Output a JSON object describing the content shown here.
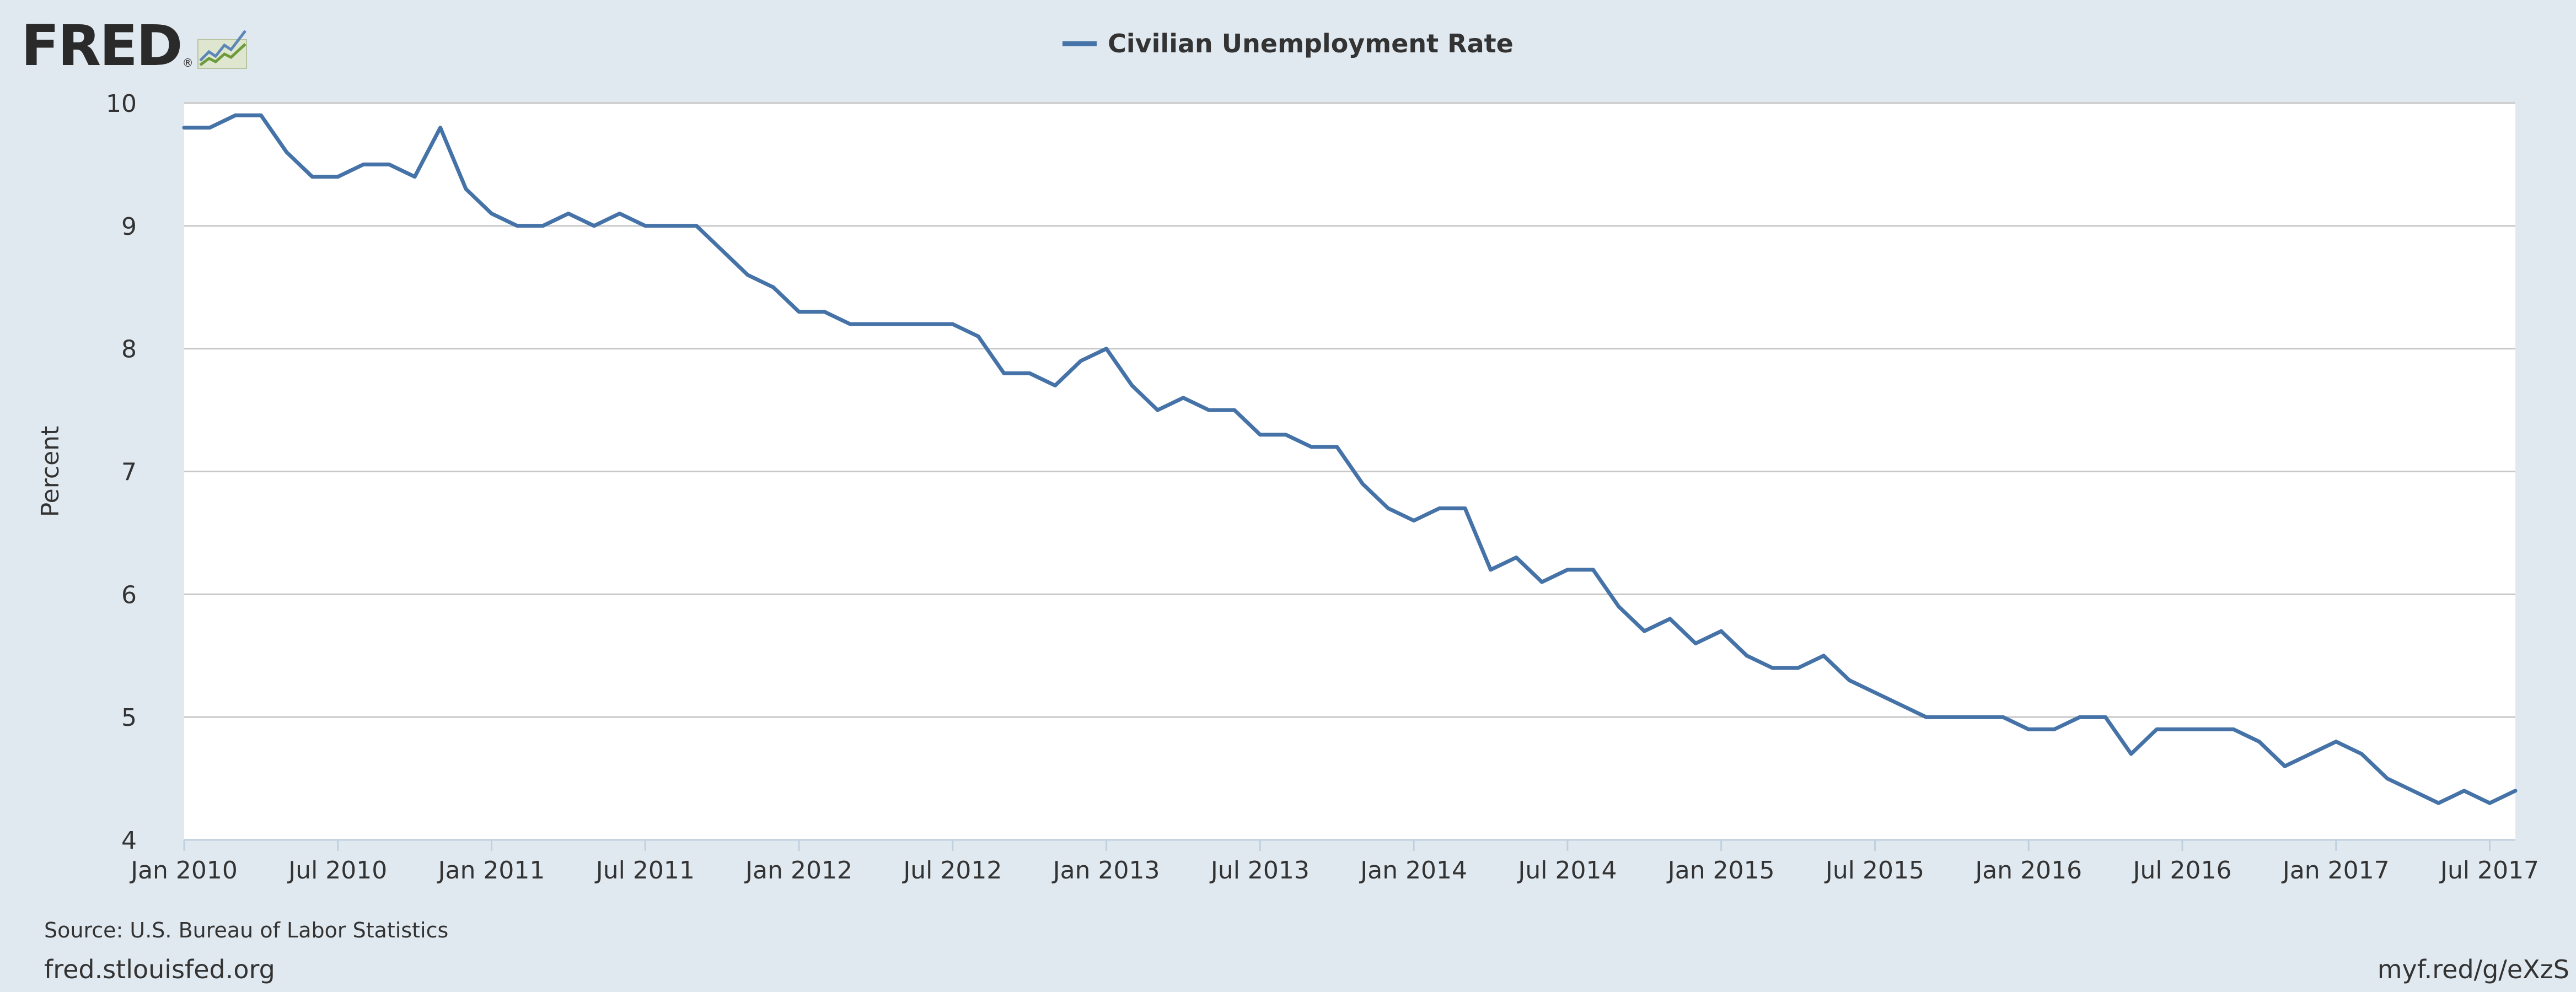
{
  "logo": {
    "text": "FRED",
    "reg": "®"
  },
  "footer": {
    "source": "Source: U.S. Bureau of Labor Statistics",
    "site": "fred.stlouisfed.org",
    "shortlink": "myf.red/g/eXzS"
  },
  "colors": {
    "background": "#e1e9f0",
    "plot": "#ffffff",
    "series": "#4572a7",
    "grid": "#c8c8c8"
  },
  "chart_data": {
    "type": "line",
    "title": "",
    "xlabel": "",
    "ylabel": "Percent",
    "ylim": [
      4,
      10
    ],
    "yticks": [
      4,
      5,
      6,
      7,
      8,
      9,
      10
    ],
    "grid": true,
    "legend_position": "top-center",
    "x_ticks": [
      {
        "date": "2010-01",
        "label": "Jan 2010"
      },
      {
        "date": "2010-07",
        "label": "Jul 2010"
      },
      {
        "date": "2011-01",
        "label": "Jan 2011"
      },
      {
        "date": "2011-07",
        "label": "Jul 2011"
      },
      {
        "date": "2012-01",
        "label": "Jan 2012"
      },
      {
        "date": "2012-07",
        "label": "Jul 2012"
      },
      {
        "date": "2013-01",
        "label": "Jan 2013"
      },
      {
        "date": "2013-07",
        "label": "Jul 2013"
      },
      {
        "date": "2014-01",
        "label": "Jan 2014"
      },
      {
        "date": "2014-07",
        "label": "Jul 2014"
      },
      {
        "date": "2015-01",
        "label": "Jan 2015"
      },
      {
        "date": "2015-07",
        "label": "Jul 2015"
      },
      {
        "date": "2016-01",
        "label": "Jan 2016"
      },
      {
        "date": "2016-07",
        "label": "Jul 2016"
      },
      {
        "date": "2017-01",
        "label": "Jan 2017"
      },
      {
        "date": "2017-07",
        "label": "Jul 2017"
      }
    ],
    "series": [
      {
        "name": "Civilian Unemployment Rate",
        "color": "#4572a7",
        "x": [
          "2010-01",
          "2010-02",
          "2010-03",
          "2010-04",
          "2010-05",
          "2010-06",
          "2010-07",
          "2010-08",
          "2010-09",
          "2010-10",
          "2010-11",
          "2010-12",
          "2011-01",
          "2011-02",
          "2011-03",
          "2011-04",
          "2011-05",
          "2011-06",
          "2011-07",
          "2011-08",
          "2011-09",
          "2011-10",
          "2011-11",
          "2011-12",
          "2012-01",
          "2012-02",
          "2012-03",
          "2012-04",
          "2012-05",
          "2012-06",
          "2012-07",
          "2012-08",
          "2012-09",
          "2012-10",
          "2012-11",
          "2012-12",
          "2013-01",
          "2013-02",
          "2013-03",
          "2013-04",
          "2013-05",
          "2013-06",
          "2013-07",
          "2013-08",
          "2013-09",
          "2013-10",
          "2013-11",
          "2013-12",
          "2014-01",
          "2014-02",
          "2014-03",
          "2014-04",
          "2014-05",
          "2014-06",
          "2014-07",
          "2014-08",
          "2014-09",
          "2014-10",
          "2014-11",
          "2014-12",
          "2015-01",
          "2015-02",
          "2015-03",
          "2015-04",
          "2015-05",
          "2015-06",
          "2015-07",
          "2015-08",
          "2015-09",
          "2015-10",
          "2015-11",
          "2015-12",
          "2016-01",
          "2016-02",
          "2016-03",
          "2016-04",
          "2016-05",
          "2016-06",
          "2016-07",
          "2016-08",
          "2016-09",
          "2016-10",
          "2016-11",
          "2016-12",
          "2017-01",
          "2017-02",
          "2017-03",
          "2017-04",
          "2017-05",
          "2017-06",
          "2017-07",
          "2017-08"
        ],
        "y": [
          9.8,
          9.8,
          9.9,
          9.9,
          9.6,
          9.4,
          9.4,
          9.5,
          9.5,
          9.4,
          9.8,
          9.3,
          9.1,
          9.0,
          9.0,
          9.1,
          9.0,
          9.1,
          9.0,
          9.0,
          9.0,
          8.8,
          8.6,
          8.5,
          8.3,
          8.3,
          8.2,
          8.2,
          8.2,
          8.2,
          8.2,
          8.1,
          7.8,
          7.8,
          7.7,
          7.9,
          8.0,
          7.7,
          7.5,
          7.6,
          7.5,
          7.5,
          7.3,
          7.3,
          7.2,
          7.2,
          6.9,
          6.7,
          6.6,
          6.7,
          6.7,
          6.2,
          6.3,
          6.1,
          6.2,
          6.2,
          5.9,
          5.7,
          5.8,
          5.6,
          5.7,
          5.5,
          5.4,
          5.4,
          5.5,
          5.3,
          5.2,
          5.1,
          5.0,
          5.0,
          5.0,
          5.0,
          4.9,
          4.9,
          5.0,
          5.0,
          4.7,
          4.9,
          4.9,
          4.9,
          4.9,
          4.8,
          4.6,
          4.7,
          4.8,
          4.7,
          4.5,
          4.4,
          4.3,
          4.4,
          4.3,
          4.4
        ]
      }
    ]
  }
}
